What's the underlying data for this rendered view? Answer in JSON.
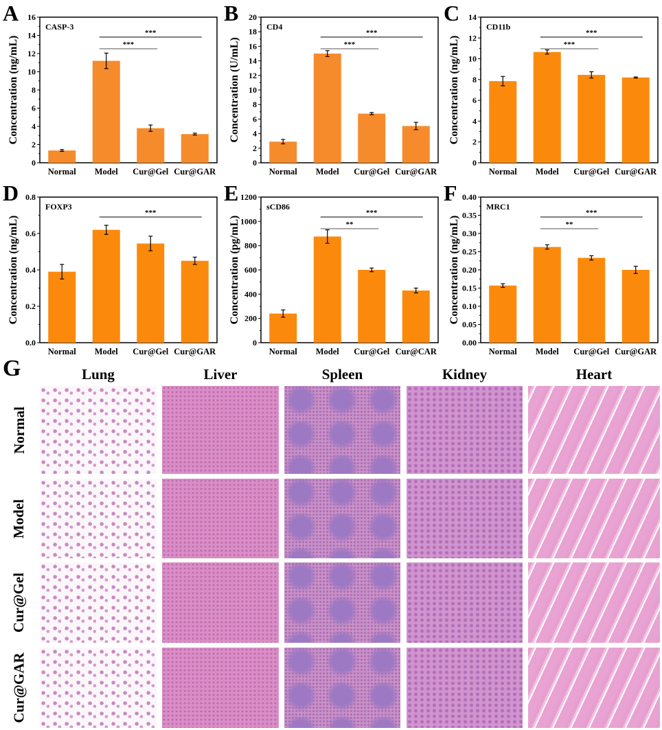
{
  "chart_data": [
    {
      "type": "bar",
      "panel": "A",
      "title": "CASP-3",
      "ylabel": "Concentration (ng/mL)",
      "categories": [
        "Normal",
        "Model",
        "Cur@Gel",
        "Cur@GAR"
      ],
      "values": [
        1.35,
        11.2,
        3.8,
        3.15
      ],
      "errors": [
        0.1,
        0.85,
        0.35,
        0.1
      ],
      "ylim": [
        0,
        16
      ],
      "yticks": [
        0,
        2,
        4,
        6,
        8,
        10,
        12,
        14,
        16
      ],
      "color": "#f68b2c",
      "significance": [
        {
          "from": "Model",
          "to": "Cur@Gel",
          "label": "***"
        },
        {
          "from": "Model",
          "to": "Cur@GAR",
          "label": "***"
        }
      ]
    },
    {
      "type": "bar",
      "panel": "B",
      "title": "CD4",
      "ylabel": "Concentration (U/mL)",
      "categories": [
        "Normal",
        "Model",
        "Cur@Gel",
        "Cur@GAR"
      ],
      "values": [
        2.9,
        15.0,
        6.75,
        5.05
      ],
      "errors": [
        0.3,
        0.4,
        0.15,
        0.5
      ],
      "ylim": [
        0,
        20
      ],
      "yticks": [
        0,
        2,
        4,
        6,
        8,
        10,
        12,
        14,
        16,
        18,
        20
      ],
      "color": "#f68b2c",
      "significance": [
        {
          "from": "Model",
          "to": "Cur@Gel",
          "label": "***"
        },
        {
          "from": "Model",
          "to": "Cur@GAR",
          "label": "***"
        }
      ]
    },
    {
      "type": "bar",
      "panel": "C",
      "title": "CD11b",
      "ylabel": "Concentration (ng/mL)",
      "categories": [
        "Normal",
        "Model",
        "Cur@Gel",
        "Cur@GAR"
      ],
      "values": [
        7.85,
        10.65,
        8.45,
        8.2
      ],
      "errors": [
        0.45,
        0.2,
        0.3,
        0.05
      ],
      "ylim": [
        0,
        14
      ],
      "yticks": [
        0,
        2,
        4,
        6,
        8,
        10,
        12,
        14
      ],
      "color": "#fb8a0c",
      "significance": [
        {
          "from": "Model",
          "to": "Cur@Gel",
          "label": "***"
        },
        {
          "from": "Model",
          "to": "Cur@GAR",
          "label": "***"
        }
      ]
    },
    {
      "type": "bar",
      "panel": "D",
      "title": "FOXP3",
      "ylabel": "Concentration (ng/mL)",
      "categories": [
        "Normal",
        "Model",
        "Cur@Gel",
        "Cur@GAR"
      ],
      "values": [
        0.39,
        0.62,
        0.545,
        0.45
      ],
      "errors": [
        0.04,
        0.025,
        0.04,
        0.02
      ],
      "ylim": [
        0,
        0.8
      ],
      "yticks": [
        "0.0",
        "0.2",
        "0.4",
        "0.6",
        "0.8"
      ],
      "color": "#fb8a0c",
      "significance": [
        {
          "from": "Model",
          "to": "Cur@GAR",
          "label": "***"
        }
      ]
    },
    {
      "type": "bar",
      "panel": "E",
      "title": "sCD86",
      "ylabel": "Concentration (pg/mL)",
      "categories": [
        "Normal",
        "Model",
        "Cur@Gel",
        "Cur@CAR"
      ],
      "values": [
        240,
        875,
        600,
        430
      ],
      "errors": [
        30,
        55,
        15,
        20
      ],
      "ylim": [
        0,
        1200
      ],
      "yticks": [
        0,
        200,
        400,
        600,
        800,
        1000,
        1200
      ],
      "color": "#fb8a0c",
      "significance": [
        {
          "from": "Model",
          "to": "Cur@Gel",
          "label": "**"
        },
        {
          "from": "Model",
          "to": "Cur@CAR",
          "label": "***"
        }
      ]
    },
    {
      "type": "bar",
      "panel": "F",
      "title": "MRC1",
      "ylabel": "Concentration (ng/mL)",
      "categories": [
        "Normal",
        "Model",
        "Cur@Gel",
        "Cur@GAR"
      ],
      "values": [
        0.157,
        0.263,
        0.233,
        0.2
      ],
      "errors": [
        0.005,
        0.006,
        0.006,
        0.01
      ],
      "ylim": [
        0,
        0.4
      ],
      "yticks": [
        "0.00",
        "0.05",
        "0.10",
        "0.15",
        "0.20",
        "0.25",
        "0.30",
        "0.35",
        "0.40"
      ],
      "color": "#fb8a0c",
      "significance": [
        {
          "from": "Model",
          "to": "Cur@Gel",
          "label": "**"
        },
        {
          "from": "Model",
          "to": "Cur@GAR",
          "label": "***"
        }
      ]
    }
  ],
  "histology": {
    "panel": "G",
    "columns": [
      "Lung",
      "Liver",
      "Spleen",
      "Kidney",
      "Heart"
    ],
    "rows": [
      "Normal",
      "Model",
      "Cur@Gel",
      "Cur@GAR"
    ]
  }
}
